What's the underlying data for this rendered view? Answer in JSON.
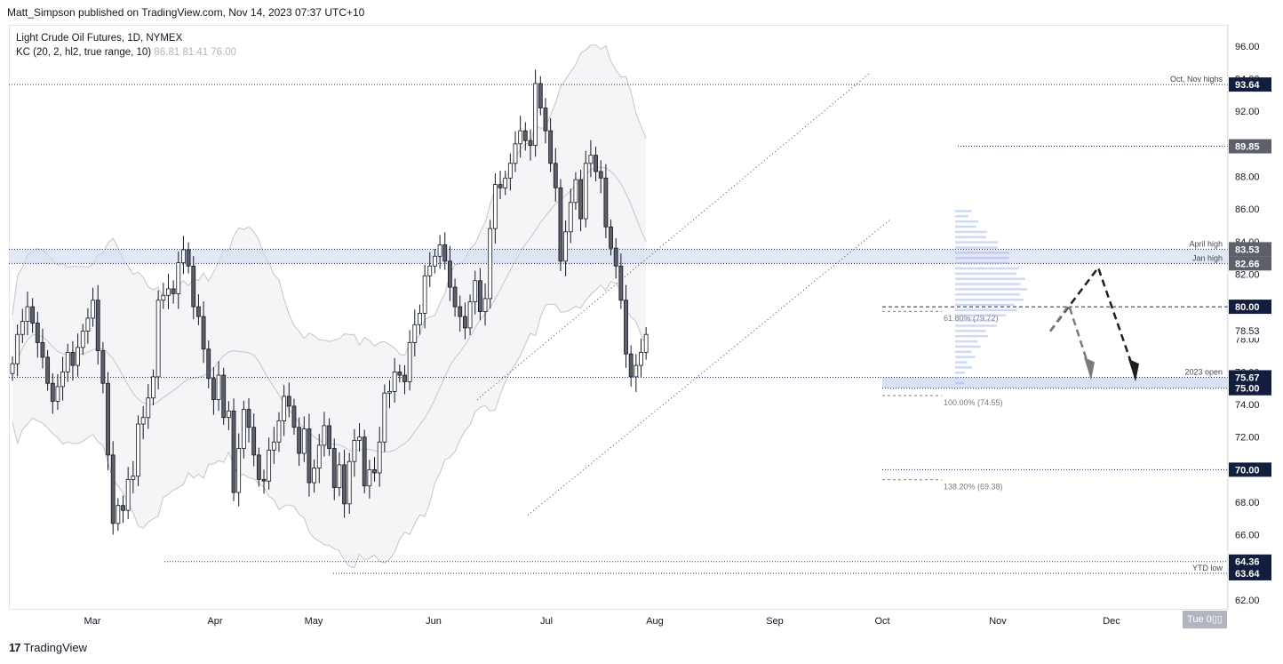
{
  "header": {
    "publisher_line": "Matt_Simpson published on TradingView.com, Nov 14, 2023 07:37 UTC+10"
  },
  "legend": {
    "symbol_line": "Light Crude Oil Futures, 1D, NYMEX",
    "indicator_name": "KC (20, 2, hl2, true range, 10)",
    "indicator_values": "86.81  81.41  76.00"
  },
  "footer": {
    "brand": "TradingView",
    "logo_glyph": "17"
  },
  "date_label": "Tue 0▯▯",
  "colors": {
    "bull": "#ffffff",
    "bear": "#5d606b",
    "wick": "#131722",
    "price_tag": "#131e3f",
    "price_tag_gray": "#5d606b",
    "zone": "#d1d9f0",
    "channel_band": "#f5f5f7",
    "channel_line": "#c3c5ca",
    "dotted": "#1e2a5a",
    "arrow_dark": "#1e1e1e",
    "arrow_gray": "#7a7a7a"
  },
  "chart_data": {
    "type": "candlestick",
    "symbol": "Light Crude Oil Futures",
    "interval": "1D",
    "exchange": "NYMEX",
    "y_axis": {
      "range": [
        61.4,
        97.3
      ],
      "ticks": [
        62.0,
        64.0,
        66.0,
        68.0,
        70.0,
        72.0,
        74.0,
        76.0,
        78.0,
        80.0,
        82.0,
        84.0,
        86.0,
        88.0,
        90.0,
        92.0,
        94.0,
        96.0
      ],
      "last_price": 78.53
    },
    "x_axis": {
      "month_ticks": [
        "Mar",
        "Apr",
        "May",
        "Jun",
        "Jul",
        "Aug",
        "Sep",
        "Oct",
        "Nov",
        "Dec"
      ]
    },
    "ohlc_closes_approx": [
      76.5,
      78.3,
      79.1,
      80.0,
      79.0,
      77.8,
      76.9,
      75.3,
      74.2,
      75.1,
      76.0,
      77.2,
      76.4,
      77.5,
      78.5,
      79.3,
      80.4,
      77.3,
      75.3,
      70.9,
      66.7,
      67.8,
      67.5,
      69.4,
      69.6,
      72.8,
      73.2,
      74.4,
      75.7,
      80.4,
      80.7,
      81.1,
      80.8,
      82.7,
      83.5,
      82.5,
      80.0,
      79.4,
      77.4,
      75.6,
      74.3,
      75.8,
      73.2,
      73.6,
      68.6,
      71.3,
      73.7,
      72.6,
      70.9,
      69.4,
      69.3,
      71.2,
      71.7,
      73.0,
      74.5,
      73.9,
      72.6,
      71.0,
      72.5,
      69.2,
      70.1,
      71.5,
      72.7,
      71.3,
      68.9,
      70.3,
      67.9,
      70.5,
      71.8,
      72.0,
      69.0,
      70.0,
      69.8,
      71.7,
      74.7,
      74.8,
      76.0,
      75.8,
      75.4,
      77.8,
      78.9,
      79.6,
      81.9,
      82.5,
      83.1,
      83.8,
      82.8,
      81.2,
      80.0,
      79.4,
      78.7,
      80.3,
      81.6,
      79.7,
      80.5,
      84.8,
      87.5,
      87.3,
      87.9,
      88.8,
      90.0,
      90.8,
      90.2,
      89.9,
      93.7,
      92.2,
      90.8,
      88.8,
      87.3,
      82.8,
      84.6,
      86.4,
      87.8,
      85.4,
      88.8,
      89.3,
      88.3,
      87.9,
      84.9,
      83.6,
      82.5,
      80.4,
      77.1,
      75.7,
      76.4,
      77.2,
      78.3
    ],
    "annotations": {
      "horizontal_levels": [
        {
          "label": "Oct, Nov highs",
          "value": 93.64
        },
        {
          "value": 89.85
        },
        {
          "label": "April high",
          "value": 83.53
        },
        {
          "label": "Jan high",
          "value": 82.66
        },
        {
          "value": 80.0
        },
        {
          "label": "2023 open",
          "value": 75.67
        },
        {
          "value": 75.0
        },
        {
          "value": 70.0
        },
        {
          "value": 64.36
        },
        {
          "label": "YTD low",
          "value": 63.64
        }
      ],
      "price_tags": [
        "93.64",
        "89.85",
        "83.53",
        "82.66",
        "80.00",
        "78.53",
        "75.67",
        "75.00",
        "70.00",
        "64.36",
        "63.64"
      ],
      "fibonacci": [
        {
          "label": "61.80% (79.72)",
          "value": 79.72
        },
        {
          "label": "100.00% (74.55)",
          "value": 74.55
        },
        {
          "label": "138.20% (69.38)",
          "value": 69.38
        }
      ],
      "text_labels": [
        "Oct, Nov highs",
        "April high",
        "Jan high",
        "2023 open",
        "YTD low",
        "61.80% (79.72)",
        "100.00% (74.55)",
        "138.20% (69.38)"
      ]
    },
    "keltner_channel": {
      "length": 20,
      "multiplier": 2,
      "source": "hl2",
      "atr": "true range",
      "atr_length": 10,
      "upper": 86.81,
      "basis": 81.41,
      "lower": 76.0
    }
  }
}
